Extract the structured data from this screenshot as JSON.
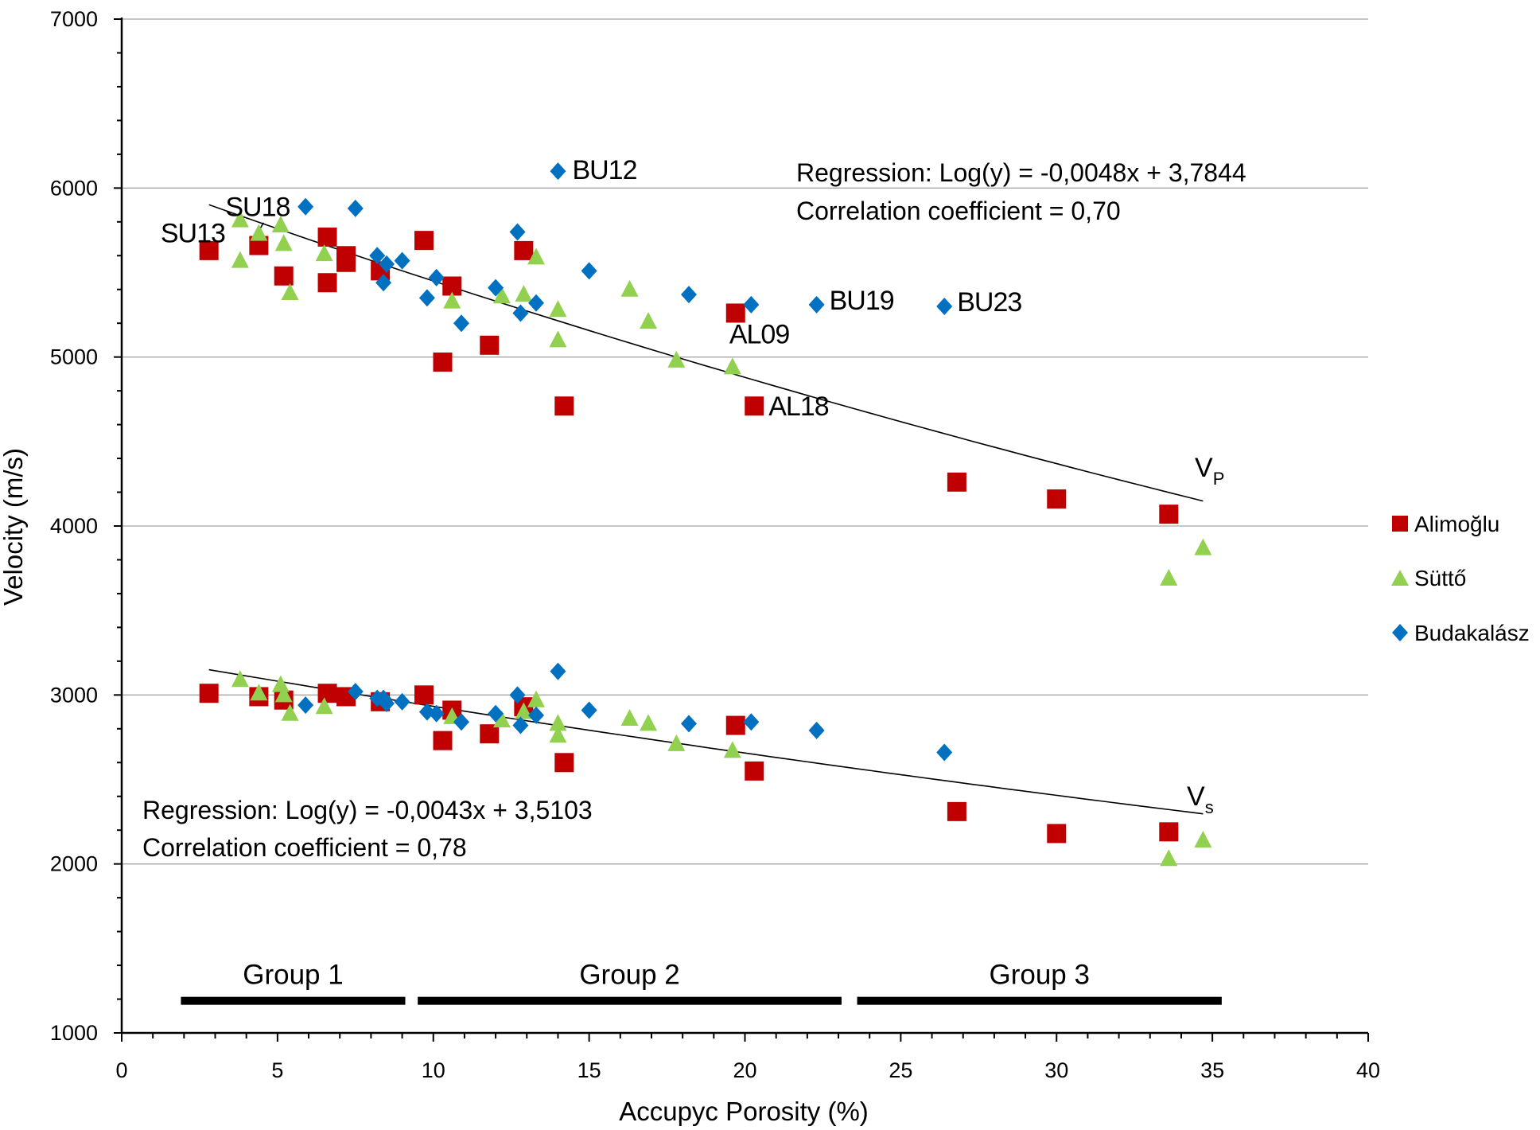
{
  "chart_data": {
    "type": "scatter",
    "xlabel": "Accupyc Porosity (%)",
    "ylabel": "Velocity (m/s)",
    "xlim": [
      0,
      40
    ],
    "ylim": [
      1000,
      7000
    ],
    "x_ticks": [
      "0",
      "5",
      "10",
      "15",
      "20",
      "25",
      "30",
      "35",
      "40"
    ],
    "y_ticks": [
      "1000",
      "2000",
      "3000",
      "4000",
      "5000",
      "6000",
      "7000"
    ],
    "grid": "horizontal major",
    "legend_position": "right",
    "series": [
      {
        "name": "Alimoğlu",
        "marker": "square",
        "color": "#c00000",
        "points": [
          [
            2.8,
            5630
          ],
          [
            4.4,
            5660
          ],
          [
            5.2,
            5480
          ],
          [
            6.6,
            5440
          ],
          [
            6.6,
            5710
          ],
          [
            7.2,
            5600
          ],
          [
            7.2,
            5560
          ],
          [
            8.3,
            5510
          ],
          [
            9.7,
            5690
          ],
          [
            10.3,
            4970
          ],
          [
            10.6,
            5420
          ],
          [
            11.8,
            5070
          ],
          [
            12.9,
            5630
          ],
          [
            14.2,
            4710
          ],
          [
            19.7,
            5260
          ],
          [
            20.3,
            4710
          ],
          [
            26.8,
            4260
          ],
          [
            30.0,
            4160
          ],
          [
            33.6,
            4070
          ],
          [
            2.8,
            3010
          ],
          [
            4.4,
            2990
          ],
          [
            5.2,
            2970
          ],
          [
            6.6,
            3010
          ],
          [
            7.2,
            2990
          ],
          [
            8.3,
            2960
          ],
          [
            9.7,
            3000
          ],
          [
            10.3,
            2730
          ],
          [
            10.6,
            2910
          ],
          [
            11.8,
            2770
          ],
          [
            12.9,
            2930
          ],
          [
            14.2,
            2600
          ],
          [
            19.7,
            2820
          ],
          [
            20.3,
            2550
          ],
          [
            26.8,
            2310
          ],
          [
            30.0,
            2180
          ],
          [
            33.6,
            2190
          ]
        ]
      },
      {
        "name": "Süttő",
        "marker": "triangle",
        "color": "#92d050",
        "points": [
          [
            3.8,
            5810
          ],
          [
            3.8,
            5570
          ],
          [
            4.4,
            5730
          ],
          [
            5.1,
            5780
          ],
          [
            5.2,
            5670
          ],
          [
            5.4,
            5380
          ],
          [
            6.5,
            5610
          ],
          [
            10.6,
            5330
          ],
          [
            12.2,
            5360
          ],
          [
            12.9,
            5370
          ],
          [
            13.3,
            5590
          ],
          [
            14.0,
            5280
          ],
          [
            14.0,
            5100
          ],
          [
            16.3,
            5400
          ],
          [
            16.9,
            5210
          ],
          [
            17.8,
            4980
          ],
          [
            19.6,
            4940
          ],
          [
            33.6,
            3690
          ],
          [
            34.7,
            3870
          ],
          [
            3.8,
            3090
          ],
          [
            4.4,
            3010
          ],
          [
            5.1,
            3060
          ],
          [
            5.2,
            3000
          ],
          [
            5.4,
            2890
          ],
          [
            6.5,
            2930
          ],
          [
            10.6,
            2870
          ],
          [
            12.2,
            2850
          ],
          [
            12.9,
            2900
          ],
          [
            13.3,
            2970
          ],
          [
            14.0,
            2830
          ],
          [
            14.0,
            2760
          ],
          [
            16.3,
            2860
          ],
          [
            16.9,
            2830
          ],
          [
            17.8,
            2710
          ],
          [
            19.6,
            2670
          ],
          [
            33.6,
            2030
          ],
          [
            34.7,
            2140
          ]
        ]
      },
      {
        "name": "Budakalász",
        "marker": "diamond",
        "color": "#0070c0",
        "points": [
          [
            5.9,
            5890
          ],
          [
            7.5,
            5880
          ],
          [
            8.2,
            5600
          ],
          [
            8.4,
            5440
          ],
          [
            8.5,
            5550
          ],
          [
            9.0,
            5570
          ],
          [
            9.8,
            5350
          ],
          [
            10.1,
            5470
          ],
          [
            10.9,
            5200
          ],
          [
            12.0,
            5410
          ],
          [
            12.7,
            5740
          ],
          [
            12.8,
            5260
          ],
          [
            13.3,
            5320
          ],
          [
            14.0,
            6100
          ],
          [
            15.0,
            5510
          ],
          [
            18.2,
            5370
          ],
          [
            20.2,
            5310
          ],
          [
            22.3,
            5310
          ],
          [
            26.4,
            5300
          ],
          [
            5.9,
            2940
          ],
          [
            7.5,
            3020
          ],
          [
            8.2,
            2980
          ],
          [
            8.4,
            2980
          ],
          [
            8.5,
            2950
          ],
          [
            9.0,
            2960
          ],
          [
            9.8,
            2900
          ],
          [
            10.1,
            2890
          ],
          [
            10.9,
            2840
          ],
          [
            12.0,
            2890
          ],
          [
            12.7,
            3000
          ],
          [
            12.8,
            2820
          ],
          [
            13.3,
            2880
          ],
          [
            14.0,
            3140
          ],
          [
            15.0,
            2910
          ],
          [
            18.2,
            2830
          ],
          [
            20.2,
            2840
          ],
          [
            22.3,
            2790
          ],
          [
            26.4,
            2660
          ]
        ]
      }
    ],
    "trendlines": [
      {
        "name": "P",
        "label_main": "V",
        "label_sub": "P",
        "slope": -0.0048,
        "intercept": 3.7844,
        "x_range": [
          2.8,
          34.7
        ],
        "regression_text": "Regression: Log(y)  =  -0,0048x + 3,7844",
        "correlation_text": "Correlation coefficient = 0,70"
      },
      {
        "name": "s",
        "label_main": "V",
        "label_sub": "s",
        "slope": -0.0043,
        "intercept": 3.5103,
        "x_range": [
          2.8,
          34.7
        ],
        "regression_text": "Regression: Log(y)  =  -0,0043x + 3,5103",
        "correlation_text": "Correlation coefficient = 0,78"
      }
    ],
    "annotations": [
      {
        "text": "BU12",
        "x": 14.0,
        "y": 6100
      },
      {
        "text": "BU19",
        "x": 22.3,
        "y": 5310
      },
      {
        "text": "BU23",
        "x": 26.4,
        "y": 5300
      },
      {
        "text": "AL09",
        "x": 19.6,
        "y": 4940
      },
      {
        "text": "AL18",
        "x": 20.3,
        "y": 4710
      },
      {
        "text": "SU18",
        "x": 4.4,
        "y": 5730
      },
      {
        "text": "SU13",
        "x": 3.8,
        "y": 5810
      }
    ],
    "groups": [
      {
        "label": "Group 1",
        "x_start": 1.9,
        "x_end": 9.1,
        "y": 1190
      },
      {
        "label": "Group 2",
        "x_start": 9.5,
        "x_end": 23.1,
        "y": 1190
      },
      {
        "label": "Group 3",
        "x_start": 23.6,
        "x_end": 35.3,
        "y": 1190
      }
    ]
  }
}
